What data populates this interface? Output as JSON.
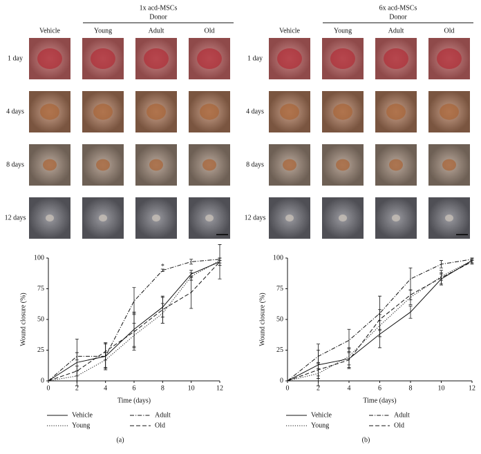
{
  "photo_panels": [
    {
      "title": "1x acd-MSCs",
      "subtitle": "Donor",
      "columns": [
        "Vehicle",
        "Young",
        "Adult",
        "Old"
      ],
      "rows": [
        "1 day",
        "4 days",
        "8 days",
        "12 days"
      ]
    },
    {
      "title": "6x acd-MSCs",
      "subtitle": "Donor",
      "columns": [
        "Vehicle",
        "Young",
        "Adult",
        "Old"
      ],
      "rows": [
        "1 day",
        "4 days",
        "8 days",
        "12 days"
      ]
    }
  ],
  "chart_data": [
    {
      "type": "line",
      "panel_label": "(a)",
      "xlabel": "Time (days)",
      "ylabel": "Wound closure (%)",
      "x": [
        0,
        2,
        4,
        6,
        8,
        10,
        12
      ],
      "xlim": [
        0,
        12
      ],
      "xticks": [
        0,
        2,
        4,
        6,
        8,
        10,
        12
      ],
      "ylim": [
        0,
        100
      ],
      "yticks": [
        0,
        25,
        50,
        75,
        100
      ],
      "series": [
        {
          "name": "Vehicle",
          "color": "#111111",
          "dash": "solid",
          "values": [
            0,
            15,
            20,
            42,
            60,
            87,
            97
          ],
          "errors": [
            0,
            19,
            11,
            14,
            8,
            3,
            3
          ]
        },
        {
          "name": "Young",
          "color": "#111111",
          "dash": "dotted",
          "values": [
            0,
            4,
            17,
            37,
            55,
            85,
            98
          ],
          "errors": [
            0,
            4,
            6,
            10,
            8,
            3,
            2
          ]
        },
        {
          "name": "Adult",
          "color": "#111111",
          "dash": "dashdot",
          "values": [
            0,
            20,
            20,
            65,
            90,
            97,
            99
          ],
          "errors": [
            0,
            3,
            10,
            11,
            1,
            2,
            1
          ]
        },
        {
          "name": "Old",
          "color": "#111111",
          "dash": "dashed",
          "values": [
            0,
            8,
            24,
            40,
            58,
            72,
            97
          ],
          "errors": [
            0,
            4,
            7,
            15,
            11,
            13,
            14
          ]
        }
      ],
      "annotations": [
        {
          "text": "*",
          "x": 8,
          "y": 93
        }
      ]
    },
    {
      "type": "line",
      "panel_label": "(b)",
      "xlabel": "Time (days)",
      "ylabel": "Wound closure (%)",
      "x": [
        0,
        2,
        4,
        6,
        8,
        10,
        12
      ],
      "xlim": [
        0,
        12
      ],
      "xticks": [
        0,
        2,
        4,
        6,
        8,
        10,
        12
      ],
      "ylim": [
        0,
        100
      ],
      "yticks": [
        0,
        25,
        50,
        75,
        100
      ],
      "series": [
        {
          "name": "Vehicle",
          "color": "#111111",
          "dash": "solid",
          "values": [
            0,
            13,
            18,
            38,
            56,
            83,
            98
          ],
          "errors": [
            0,
            17,
            8,
            11,
            5,
            4,
            2
          ]
        },
        {
          "name": "Young",
          "color": "#111111",
          "dash": "dotted",
          "values": [
            0,
            6,
            20,
            45,
            68,
            85,
            98
          ],
          "errors": [
            0,
            4,
            7,
            9,
            6,
            3,
            2
          ]
        },
        {
          "name": "Adult",
          "color": "#111111",
          "dash": "dashdot",
          "values": [
            0,
            20,
            33,
            55,
            83,
            95,
            99
          ],
          "errors": [
            0,
            5,
            9,
            14,
            9,
            3,
            1
          ]
        },
        {
          "name": "Old",
          "color": "#111111",
          "dash": "dashed",
          "values": [
            0,
            9,
            17,
            50,
            70,
            84,
            97
          ],
          "errors": [
            0,
            5,
            6,
            8,
            4,
            6,
            2
          ]
        }
      ],
      "annotations": []
    }
  ]
}
